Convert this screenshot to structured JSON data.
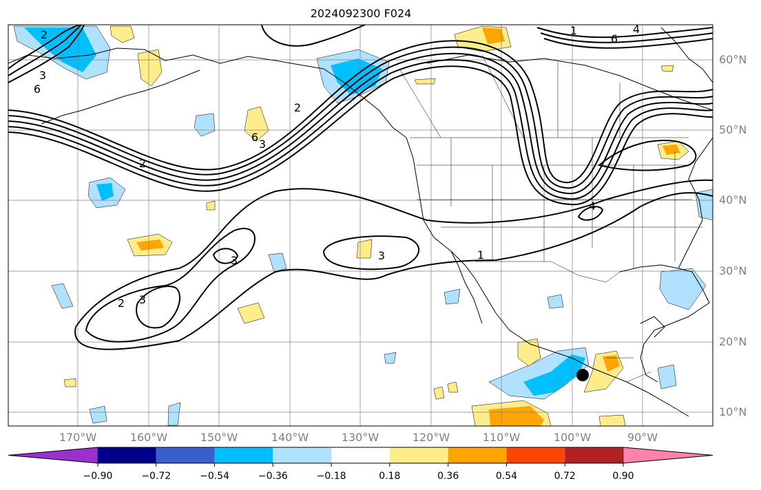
{
  "title": "2024092300 F024",
  "lat_labels": [
    "60°N",
    "50°N",
    "40°N",
    "30°N",
    "20°N",
    "10°N"
  ],
  "lon_labels": [
    "170°W",
    "160°W",
    "150°W",
    "140°W",
    "130°W",
    "120°W",
    "110°W",
    "100°W",
    "90°W"
  ],
  "colorbar": {
    "tick_labels": [
      "−0.90",
      "−0.72",
      "−0.54",
      "−0.36",
      "−0.18",
      "0.18",
      "0.36",
      "0.54",
      "0.72",
      "0.90"
    ],
    "colors": [
      "#9b30d0",
      "#00008b",
      "#3a5fcd",
      "#00bfff",
      "#b0e2ff",
      "#ffffff",
      "#ffec8b",
      "#ffa500",
      "#ff4500",
      "#b22222",
      "#ff82ab"
    ]
  },
  "contour_labels": [
    "2",
    "3",
    "6",
    "1",
    "2",
    "3",
    "3",
    "3",
    "2",
    "3",
    "6",
    "2",
    "4",
    "6",
    "1",
    "4"
  ],
  "marker": "storm-position-dot"
}
